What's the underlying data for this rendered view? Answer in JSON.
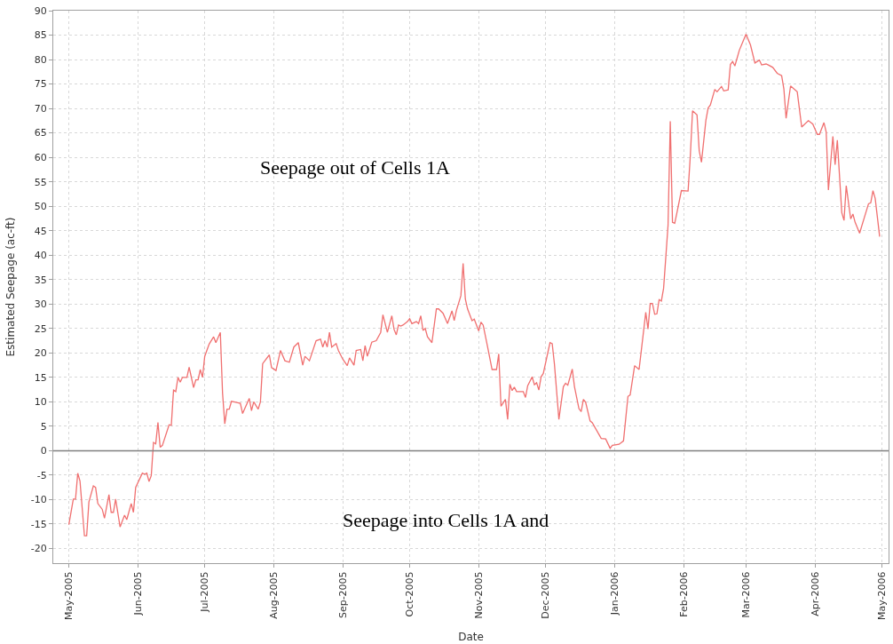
{
  "chart_data": {
    "type": "line",
    "xlabel": "Date",
    "ylabel": "Estimated Seepage (ac-ft)",
    "annotations": [
      "Seepage out of Cells 1A",
      "Seepage into Cells 1A and"
    ],
    "x": [
      "2005-05-01",
      "2005-05-03",
      "2005-05-04",
      "2005-05-05",
      "2005-05-06",
      "2005-05-08",
      "2005-05-09",
      "2005-05-10",
      "2005-05-12",
      "2005-05-13",
      "2005-05-14",
      "2005-05-16",
      "2005-05-17",
      "2005-05-19",
      "2005-05-20",
      "2005-05-21",
      "2005-05-22",
      "2005-05-24",
      "2005-05-26",
      "2005-05-27",
      "2005-05-29",
      "2005-05-30",
      "2005-05-31",
      "2005-06-03",
      "2005-06-04",
      "2005-06-05",
      "2005-06-06",
      "2005-06-07",
      "2005-06-08",
      "2005-06-09",
      "2005-06-10",
      "2005-06-11",
      "2005-06-12",
      "2005-06-15",
      "2005-06-16",
      "2005-06-17",
      "2005-06-18",
      "2005-06-19",
      "2005-06-20",
      "2005-06-21",
      "2005-06-23",
      "2005-06-24",
      "2005-06-26",
      "2005-06-27",
      "2005-06-28",
      "2005-06-29",
      "2005-06-30",
      "2005-07-01",
      "2005-07-03",
      "2005-07-05",
      "2005-07-06",
      "2005-07-08",
      "2005-07-09",
      "2005-07-10",
      "2005-07-11",
      "2005-07-12",
      "2005-07-13",
      "2005-07-15",
      "2005-07-17",
      "2005-07-18",
      "2005-07-21",
      "2005-07-22",
      "2005-07-23",
      "2005-07-25",
      "2005-07-26",
      "2005-07-27",
      "2005-07-30",
      "2005-07-31",
      "2005-08-02",
      "2005-08-04",
      "2005-08-06",
      "2005-08-08",
      "2005-08-10",
      "2005-08-12",
      "2005-08-14",
      "2005-08-15",
      "2005-08-17",
      "2005-08-20",
      "2005-08-22",
      "2005-08-23",
      "2005-08-24",
      "2005-08-25",
      "2005-08-26",
      "2005-08-27",
      "2005-08-29",
      "2005-08-30",
      "2005-09-01",
      "2005-09-03",
      "2005-09-04",
      "2005-09-06",
      "2005-09-07",
      "2005-09-09",
      "2005-09-10",
      "2005-09-11",
      "2005-09-12",
      "2005-09-14",
      "2005-09-16",
      "2005-09-18",
      "2005-09-19",
      "2005-09-21",
      "2005-09-23",
      "2005-09-24",
      "2005-09-25",
      "2005-09-26",
      "2005-09-27",
      "2005-09-28",
      "2005-09-30",
      "2005-10-01",
      "2005-10-02",
      "2005-10-04",
      "2005-10-05",
      "2005-10-06",
      "2005-10-07",
      "2005-10-08",
      "2005-10-09",
      "2005-10-11",
      "2005-10-13",
      "2005-10-14",
      "2005-10-16",
      "2005-10-18",
      "2005-10-20",
      "2005-10-21",
      "2005-10-22",
      "2005-10-24",
      "2005-10-25",
      "2005-10-26",
      "2005-10-27",
      "2005-10-29",
      "2005-10-30",
      "2005-11-01",
      "2005-11-02",
      "2005-11-03",
      "2005-11-05",
      "2005-11-07",
      "2005-11-09",
      "2005-11-10",
      "2005-11-11",
      "2005-11-13",
      "2005-11-14",
      "2005-11-15",
      "2005-11-16",
      "2005-11-17",
      "2005-11-18",
      "2005-11-21",
      "2005-11-22",
      "2005-11-23",
      "2005-11-25",
      "2005-11-26",
      "2005-11-27",
      "2005-11-28",
      "2005-11-29",
      "2005-11-30",
      "2005-12-03",
      "2005-12-04",
      "2005-12-05",
      "2005-12-07",
      "2005-12-09",
      "2005-12-10",
      "2005-12-11",
      "2005-12-13",
      "2005-12-14",
      "2005-12-16",
      "2005-12-17",
      "2005-12-18",
      "2005-12-19",
      "2005-12-21",
      "2005-12-22",
      "2005-12-26",
      "2005-12-28",
      "2005-12-30",
      "2005-12-31",
      "2006-01-03",
      "2006-01-05",
      "2006-01-07",
      "2006-01-08",
      "2006-01-10",
      "2006-01-12",
      "2006-01-15",
      "2006-01-16",
      "2006-01-17",
      "2006-01-18",
      "2006-01-19",
      "2006-01-20",
      "2006-01-21",
      "2006-01-22",
      "2006-01-23",
      "2006-01-24",
      "2006-01-25",
      "2006-01-26",
      "2006-01-27",
      "2006-01-28",
      "2006-01-29",
      "2006-01-31",
      "2006-02-03",
      "2006-02-04",
      "2006-02-05",
      "2006-02-07",
      "2006-02-08",
      "2006-02-09",
      "2006-02-11",
      "2006-02-12",
      "2006-02-13",
      "2006-02-15",
      "2006-02-16",
      "2006-02-18",
      "2006-02-19",
      "2006-02-21",
      "2006-02-22",
      "2006-02-23",
      "2006-02-24",
      "2006-02-26",
      "2006-03-01",
      "2006-03-03",
      "2006-03-05",
      "2006-03-07",
      "2006-03-08",
      "2006-03-10",
      "2006-03-11",
      "2006-03-13",
      "2006-03-15",
      "2006-03-17",
      "2006-03-18",
      "2006-03-19",
      "2006-03-21",
      "2006-03-24",
      "2006-03-26",
      "2006-03-29",
      "2006-03-31",
      "2006-04-02",
      "2006-04-03",
      "2006-04-05",
      "2006-04-06",
      "2006-04-07",
      "2006-04-09",
      "2006-04-10",
      "2006-04-11",
      "2006-04-13",
      "2006-04-14",
      "2006-04-15",
      "2006-04-17",
      "2006-04-18",
      "2006-04-19",
      "2006-04-21",
      "2006-04-25",
      "2006-04-26",
      "2006-04-27",
      "2006-04-28",
      "2006-04-30"
    ],
    "series": [
      {
        "color": "#f07070",
        "values": [
          -15.1,
          -9.9,
          -9.9,
          -4.6,
          -6.2,
          -17.4,
          -17.4,
          -10.5,
          -7.2,
          -7.5,
          -10.8,
          -12,
          -13.8,
          -9,
          -12.6,
          -12.6,
          -9.9,
          -15.6,
          -13.2,
          -14.1,
          -10.8,
          -12.6,
          -7.5,
          -4.6,
          -4.8,
          -4.6,
          -6.3,
          -5.1,
          1.7,
          1.4,
          5.8,
          0.7,
          1.1,
          5.3,
          5.2,
          12.4,
          12.1,
          15,
          14,
          15,
          15,
          17.1,
          12.9,
          14.5,
          14.5,
          16.6,
          15,
          19.3,
          21.8,
          23.3,
          22.1,
          24.2,
          11.8,
          5.5,
          8.5,
          8.5,
          10.1,
          9.9,
          9.7,
          7.6,
          10.7,
          8.2,
          10,
          8.5,
          10,
          17.8,
          19.6,
          17,
          16.4,
          20.5,
          18.4,
          18.1,
          21.2,
          22.1,
          17.5,
          19.3,
          18.4,
          22.5,
          22.8,
          21.2,
          22.5,
          21.2,
          24.2,
          21.2,
          21.9,
          20.5,
          18.7,
          17.4,
          19,
          17.5,
          20.5,
          20.7,
          18.4,
          21.5,
          19.3,
          22.2,
          22.5,
          24.2,
          27.8,
          24.2,
          27.6,
          24.8,
          23.7,
          25.7,
          25.5,
          25.7,
          26.4,
          27,
          26,
          26.4,
          26,
          27.6,
          24.6,
          25,
          23.3,
          22.1,
          29,
          29,
          28.1,
          26,
          28.6,
          26.6,
          28.7,
          31.7,
          38.3,
          31,
          29,
          26.6,
          26.9,
          24.5,
          26.3,
          25.7,
          21.2,
          16.6,
          16.6,
          19.8,
          9.1,
          10.5,
          6.4,
          13.6,
          12.3,
          13,
          12.1,
          12.1,
          10.9,
          13.3,
          15.1,
          13.5,
          13.9,
          12.4,
          15.1,
          15.8,
          22.1,
          21.9,
          17.7,
          6.4,
          13.1,
          13.8,
          13.4,
          16.7,
          13.1,
          8.6,
          8,
          10.5,
          9.9,
          6.1,
          5.7,
          2.5,
          2.4,
          0.5,
          1.1,
          1.3,
          2,
          11.1,
          11.4,
          17.4,
          16.6,
          28.3,
          24.9,
          30.1,
          30.1,
          27.9,
          28,
          30.9,
          30.6,
          33.2,
          39.6,
          46.1,
          67.4,
          46.7,
          46.5,
          48.7,
          53.2,
          53.1,
          60.3,
          69.5,
          68.7,
          61.3,
          59,
          67.6,
          70.1,
          70.7,
          73.9,
          73.4,
          74.5,
          73.6,
          73.8,
          79,
          79.6,
          78.7,
          81.9,
          85.2,
          83,
          79.3,
          79.9,
          78.9,
          79.1,
          78.9,
          78.4,
          77.2,
          76.7,
          74,
          68,
          74.6,
          73.4,
          66.2,
          67.5,
          66.8,
          64.7,
          64.7,
          67.1,
          65.2,
          53.3,
          64.3,
          58.5,
          63.5,
          48.7,
          47.1,
          54.2,
          47.4,
          48.4,
          46.7,
          44.5,
          50.5,
          50.7,
          53.2,
          51.6,
          43.8
        ]
      }
    ],
    "xlim": [
      "2005-04-24",
      "2006-05-04"
    ],
    "xticks": [
      {
        "value": "2005-05-01",
        "label": "May-2005"
      },
      {
        "value": "2005-06-01",
        "label": "Jun-2005"
      },
      {
        "value": "2005-07-01",
        "label": "Jul-2005"
      },
      {
        "value": "2005-08-01",
        "label": "Aug-2005"
      },
      {
        "value": "2005-09-01",
        "label": "Sep-2005"
      },
      {
        "value": "2005-10-01",
        "label": "Oct-2005"
      },
      {
        "value": "2005-11-01",
        "label": "Nov-2005"
      },
      {
        "value": "2005-12-01",
        "label": "Dec-2005"
      },
      {
        "value": "2006-01-01",
        "label": "Jan-2006"
      },
      {
        "value": "2006-02-01",
        "label": "Feb-2006"
      },
      {
        "value": "2006-03-01",
        "label": "Mar-2006"
      },
      {
        "value": "2006-04-01",
        "label": "Apr-2006"
      },
      {
        "value": "2006-05-01",
        "label": "May-2006"
      }
    ],
    "ylim": [
      -23,
      90
    ],
    "yticks": [
      -20,
      -15,
      -10,
      -5,
      0,
      5,
      10,
      15,
      20,
      25,
      30,
      35,
      40,
      45,
      50,
      55,
      60,
      65,
      70,
      75,
      80,
      85,
      90
    ],
    "ref_lines": [
      {
        "axis": "y",
        "value": 0,
        "color": "#808080"
      }
    ],
    "grid": true,
    "marker": "none",
    "line_style": "solid"
  }
}
